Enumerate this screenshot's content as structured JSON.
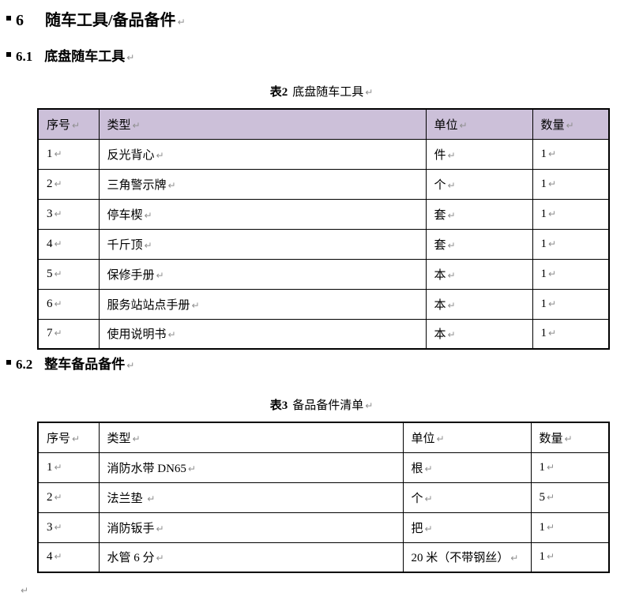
{
  "marks": {
    "pilcrow": "↵"
  },
  "colors": {
    "table2_header_bg": "#CCC0D9",
    "table3_header_bg": "#FFFFFF",
    "mark_gray": "#8f8f8f"
  },
  "headings": {
    "h1": {
      "number": "6",
      "text": "随车工具/备品备件"
    },
    "h2a": {
      "number": "6.1",
      "text": "底盘随车工具"
    },
    "h2b": {
      "number": "6.2",
      "text": "整车备品备件"
    }
  },
  "table2": {
    "caption_label": "表2",
    "caption_text": "底盘随车工具",
    "headers": [
      "序号",
      "类型",
      "单位",
      "数量"
    ],
    "rows": [
      [
        "1",
        "反光背心",
        "件",
        "1"
      ],
      [
        "2",
        "三角警示牌",
        "个",
        "1"
      ],
      [
        "3",
        "停车楔",
        "套",
        "1"
      ],
      [
        "4",
        "千斤顶",
        "套",
        "1"
      ],
      [
        "5",
        "保修手册",
        "本",
        "1"
      ],
      [
        "6",
        "服务站站点手册",
        "本",
        "1"
      ],
      [
        "7",
        "使用说明书",
        "本",
        "1"
      ]
    ]
  },
  "table3": {
    "caption_label": "表3",
    "caption_text": "备品备件清单",
    "headers": [
      "序号",
      "类型",
      "单位",
      "数量"
    ],
    "rows": [
      [
        "1",
        "消防水带 DN65",
        "根",
        "1"
      ],
      [
        "2",
        "法兰垫 ",
        "个",
        "5"
      ],
      [
        "3",
        "消防钣手",
        "把",
        "1"
      ],
      [
        "4",
        "水管 6 分",
        "20 米（不带钢丝）",
        "1"
      ]
    ]
  }
}
